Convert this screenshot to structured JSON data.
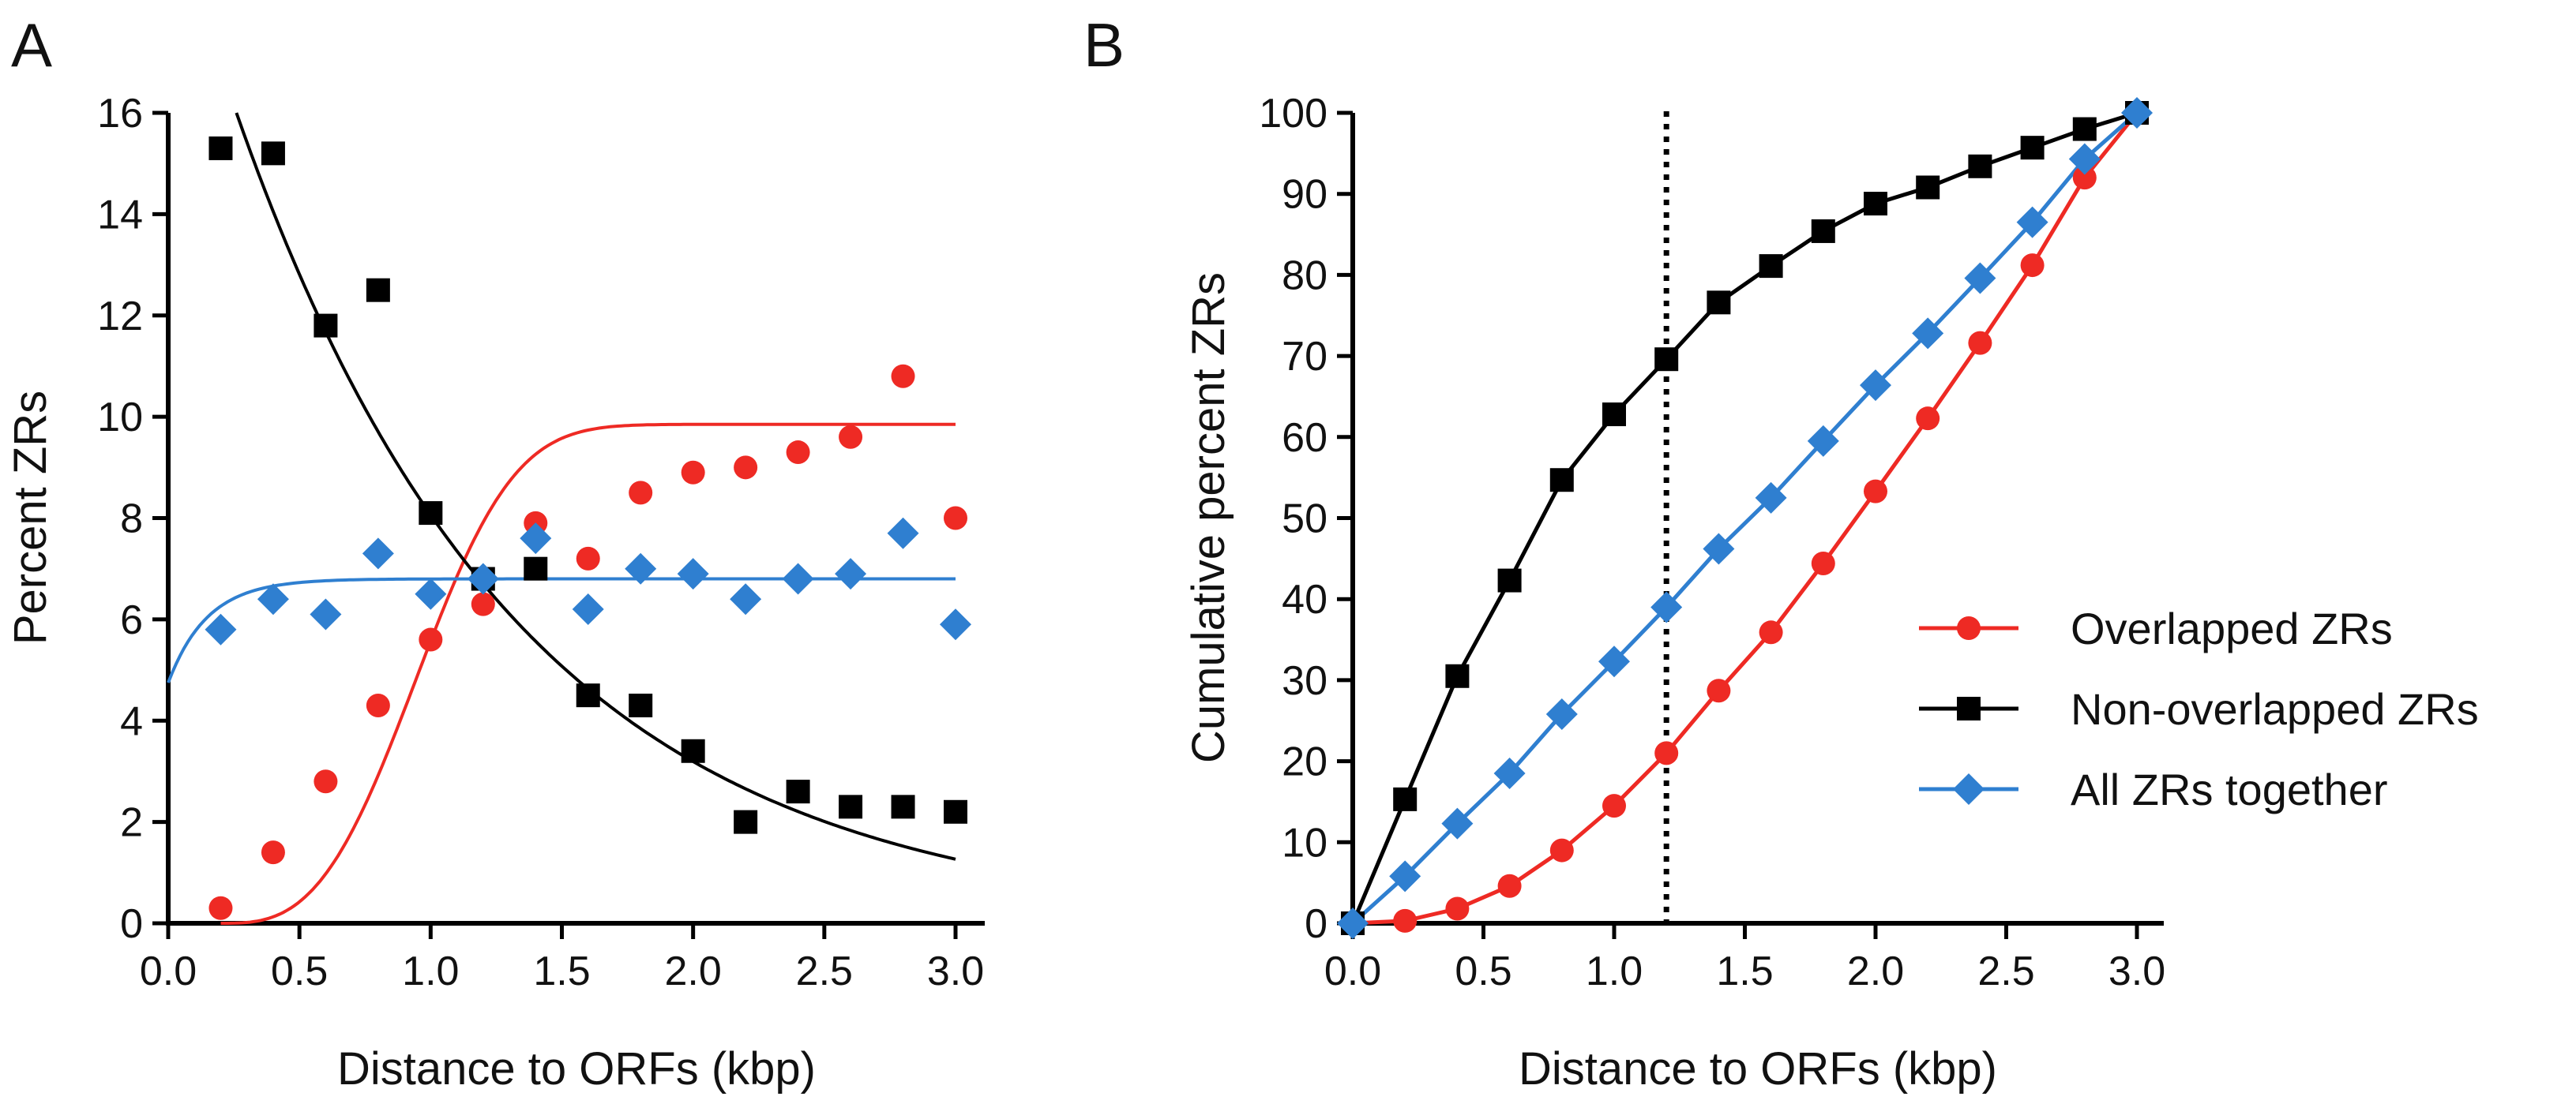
{
  "chart_data": [
    {
      "panel": "A",
      "type": "scatter",
      "title": "",
      "xlabel": "Distance to ORFs (kbp)",
      "ylabel": "Percent ZRs",
      "xlim": [
        0,
        3
      ],
      "ylim": [
        0,
        16
      ],
      "xticks": [
        "0.0",
        "0.5",
        "1.0",
        "1.5",
        "2.0",
        "2.5",
        "3.0"
      ],
      "yticks": [
        "0",
        "2",
        "4",
        "6",
        "8",
        "10",
        "12",
        "14",
        "16"
      ],
      "series": [
        {
          "name": "Overlapped ZRs",
          "color": "#ee2a24",
          "marker": "circle",
          "x": [
            0.2,
            0.4,
            0.6,
            0.8,
            1.0,
            1.2,
            1.4,
            1.6,
            1.8,
            2.0,
            2.2,
            2.4,
            2.6,
            2.8,
            3.0
          ],
          "y": [
            0.3,
            1.4,
            2.8,
            4.3,
            5.6,
            6.3,
            7.9,
            7.2,
            8.5,
            8.9,
            9.0,
            9.3,
            9.6,
            10.8,
            8.0
          ],
          "fit": {
            "model": "cubic-rise",
            "x0": 0.2,
            "top": 9.85,
            "tau": 0.85
          }
        },
        {
          "name": "Non-overlapped ZRs",
          "color": "#000000",
          "marker": "square",
          "x": [
            0.2,
            0.4,
            0.6,
            0.8,
            1.0,
            1.2,
            1.4,
            1.6,
            1.8,
            2.0,
            2.2,
            2.4,
            2.6,
            2.8,
            3.0
          ],
          "y": [
            15.3,
            15.2,
            11.8,
            12.5,
            8.1,
            6.8,
            7.0,
            4.5,
            4.3,
            3.4,
            2.0,
            2.6,
            2.3,
            2.3,
            2.2
          ],
          "fit": {
            "model": "exp-decay",
            "x_start": 0.26,
            "amp": 16.0,
            "tau": 1.08,
            "x0": 0.26
          }
        },
        {
          "name": "All ZRs together",
          "color": "#2f7fd0",
          "marker": "diamond",
          "x": [
            0.2,
            0.4,
            0.6,
            0.8,
            1.0,
            1.2,
            1.4,
            1.6,
            1.8,
            2.0,
            2.2,
            2.4,
            2.6,
            2.8,
            3.0
          ],
          "y": [
            5.8,
            6.4,
            6.1,
            7.3,
            6.5,
            6.8,
            7.6,
            6.2,
            7.0,
            6.9,
            6.4,
            6.8,
            6.9,
            7.7,
            5.9
          ],
          "fit": {
            "model": "exp-plateau",
            "y0": 4.75,
            "plateau": 6.8,
            "tau": 0.15
          }
        }
      ]
    },
    {
      "panel": "B",
      "type": "line",
      "title": "",
      "xlabel": "Distance to ORFs (kbp)",
      "ylabel": "Cumulative percent ZRs",
      "xlim": [
        0,
        3
      ],
      "ylim": [
        0,
        100
      ],
      "xticks": [
        "0.0",
        "0.5",
        "1.0",
        "1.5",
        "2.0",
        "2.5",
        "3.0"
      ],
      "yticks": [
        "0",
        "10",
        "20",
        "30",
        "40",
        "50",
        "60",
        "70",
        "80",
        "90",
        "100"
      ],
      "vline_x": 1.2,
      "legend_position": "right",
      "series": [
        {
          "name": "Overlapped ZRs",
          "color": "#ee2a24",
          "marker": "circle",
          "x": [
            0.0,
            0.2,
            0.4,
            0.6,
            0.8,
            1.0,
            1.2,
            1.4,
            1.6,
            1.8,
            2.0,
            2.2,
            2.4,
            2.6,
            2.8,
            3.0
          ],
          "y": [
            0,
            0.3,
            1.8,
            4.6,
            9.0,
            14.5,
            21.0,
            28.7,
            35.9,
            44.4,
            53.3,
            62.3,
            71.6,
            81.2,
            92.0,
            100
          ]
        },
        {
          "name": "Non-overlapped ZRs",
          "color": "#000000",
          "marker": "square",
          "x": [
            0.0,
            0.2,
            0.4,
            0.6,
            0.8,
            1.0,
            1.2,
            1.4,
            1.6,
            1.8,
            2.0,
            2.2,
            2.4,
            2.6,
            2.8,
            3.0
          ],
          "y": [
            0,
            15.3,
            30.5,
            42.3,
            54.7,
            62.8,
            69.6,
            76.6,
            81.1,
            85.4,
            88.8,
            90.8,
            93.4,
            95.7,
            98.0,
            100
          ]
        },
        {
          "name": "All ZRs together",
          "color": "#2f7fd0",
          "marker": "diamond",
          "x": [
            0.0,
            0.2,
            0.4,
            0.6,
            0.8,
            1.0,
            1.2,
            1.4,
            1.6,
            1.8,
            2.0,
            2.2,
            2.4,
            2.6,
            2.8,
            3.0
          ],
          "y": [
            0,
            5.8,
            12.3,
            18.5,
            25.8,
            32.3,
            39.0,
            46.2,
            52.5,
            59.5,
            66.4,
            72.8,
            79.6,
            86.5,
            94.3,
            100
          ]
        }
      ]
    }
  ]
}
